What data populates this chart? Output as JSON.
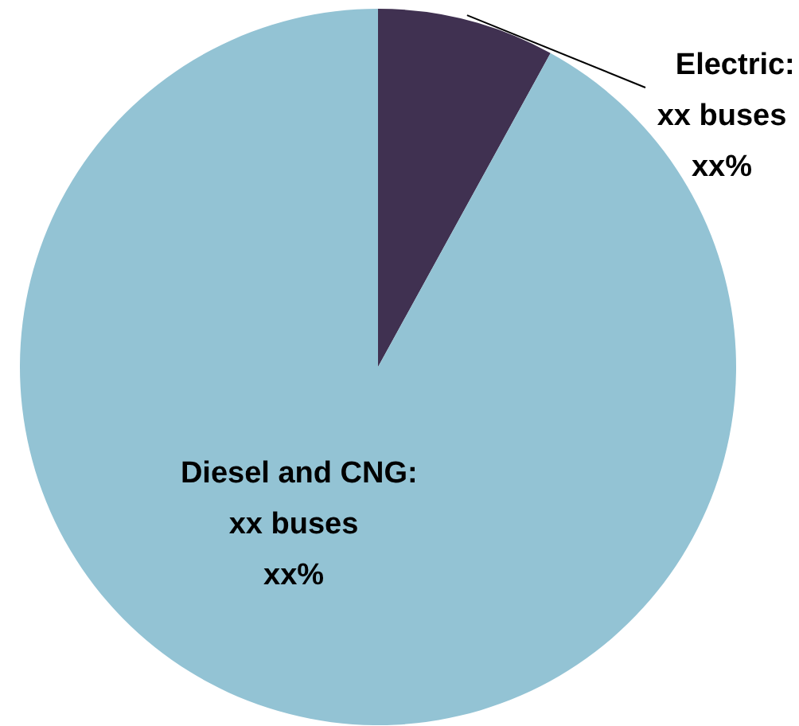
{
  "chart_data": {
    "type": "pie",
    "categories": [
      "Electric",
      "Diesel and CNG"
    ],
    "values": [
      8,
      92
    ],
    "colors": [
      "#403151",
      "#93c3d4"
    ],
    "value_labels": [
      ":\nxx buses\nxx%",
      ":\nxx buses\nxx%"
    ]
  }
}
